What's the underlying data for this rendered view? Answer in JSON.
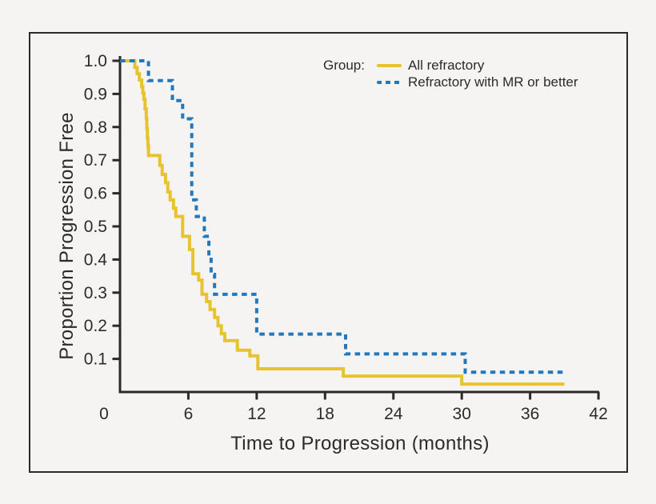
{
  "chart_data": {
    "type": "line",
    "subtype": "kaplan-meier-step",
    "title": "",
    "xlabel": "Time to Progression (months)",
    "ylabel": "Proportion Progression Free",
    "xlim": [
      0,
      42
    ],
    "ylim": [
      0,
      1.0
    ],
    "x_ticks": [
      "0",
      "6",
      "12",
      "18",
      "24",
      "30",
      "36",
      "42"
    ],
    "y_ticks": [
      "1.0",
      "0.9",
      "0.8",
      "0.7",
      "0.6",
      "0.5",
      "0.4",
      "0.3",
      "0.2",
      "0.1"
    ],
    "grid": "off",
    "legend_title": "Group:",
    "legend_position": "top-right-inside",
    "axis_color": "#2a2a2a",
    "background_color": "#f5f4f2",
    "series": [
      {
        "name": "All refractory",
        "color": "#E8C330",
        "line_style": "solid",
        "steps": [
          [
            0,
            1.0
          ],
          [
            1.3,
            0.98
          ],
          [
            1.5,
            0.961
          ],
          [
            1.7,
            0.942
          ],
          [
            1.9,
            0.922
          ],
          [
            2.0,
            0.903
          ],
          [
            2.1,
            0.884
          ],
          [
            2.2,
            0.855
          ],
          [
            2.3,
            0.826
          ],
          [
            2.35,
            0.796
          ],
          [
            2.4,
            0.767
          ],
          [
            2.45,
            0.743
          ],
          [
            2.5,
            0.714
          ],
          [
            3.5,
            0.684
          ],
          [
            3.7,
            0.657
          ],
          [
            4.0,
            0.632
          ],
          [
            4.2,
            0.604
          ],
          [
            4.4,
            0.58
          ],
          [
            4.7,
            0.555
          ],
          [
            4.9,
            0.53
          ],
          [
            5.5,
            0.47
          ],
          [
            6.1,
            0.43
          ],
          [
            6.4,
            0.357
          ],
          [
            6.9,
            0.338
          ],
          [
            7.2,
            0.295
          ],
          [
            7.6,
            0.273
          ],
          [
            7.9,
            0.249
          ],
          [
            8.3,
            0.225
          ],
          [
            8.6,
            0.2
          ],
          [
            8.9,
            0.176
          ],
          [
            9.2,
            0.155
          ],
          [
            10.3,
            0.126
          ],
          [
            11.4,
            0.109
          ],
          [
            12.1,
            0.07
          ],
          [
            19.6,
            0.048
          ],
          [
            30.0,
            0.024
          ],
          [
            39.0,
            0.024
          ]
        ]
      },
      {
        "name": "Refractory with MR or better",
        "color": "#2178BC",
        "line_style": "dashed",
        "steps": [
          [
            0,
            1.0
          ],
          [
            2.5,
            0.94
          ],
          [
            4.6,
            0.88
          ],
          [
            5.5,
            0.825
          ],
          [
            6.3,
            0.58
          ],
          [
            6.7,
            0.53
          ],
          [
            7.4,
            0.47
          ],
          [
            7.8,
            0.41
          ],
          [
            8.0,
            0.355
          ],
          [
            8.3,
            0.295
          ],
          [
            12.0,
            0.175
          ],
          [
            19.8,
            0.115
          ],
          [
            30.3,
            0.06
          ],
          [
            39.2,
            0.06
          ]
        ]
      }
    ]
  }
}
